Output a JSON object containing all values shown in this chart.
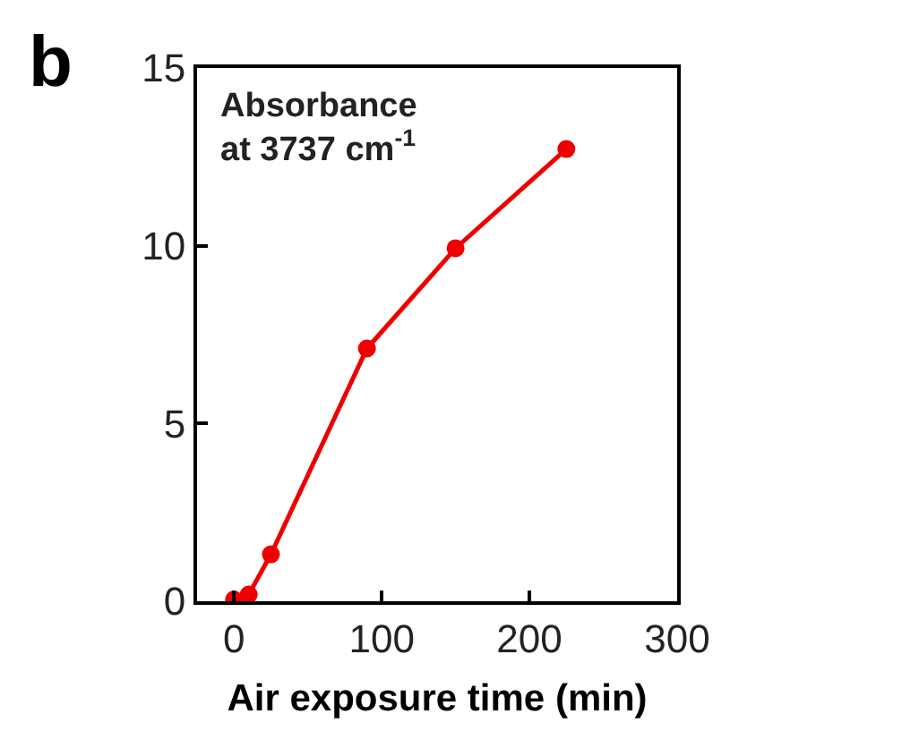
{
  "chart_data": {
    "type": "line",
    "xlabel": "Air exposure time (min)",
    "annotations": [
      "b",
      "Absorbance\nat 3737 cm$^{-1}$"
    ],
    "x": [
      0,
      10,
      25,
      90,
      150,
      225
    ],
    "series": [
      {
        "color": "#ee0000",
        "values": [
          0.05,
          0.19,
          1.32,
          7.11,
          9.93,
          12.72
        ]
      }
    ],
    "xlim": [
      -25,
      300
    ],
    "xticks": [
      0,
      100,
      200,
      300
    ],
    "ylim": [
      0,
      15
    ],
    "yticks": [
      0,
      5,
      10,
      15
    ],
    "marker": "circle",
    "line_style": "solid"
  }
}
